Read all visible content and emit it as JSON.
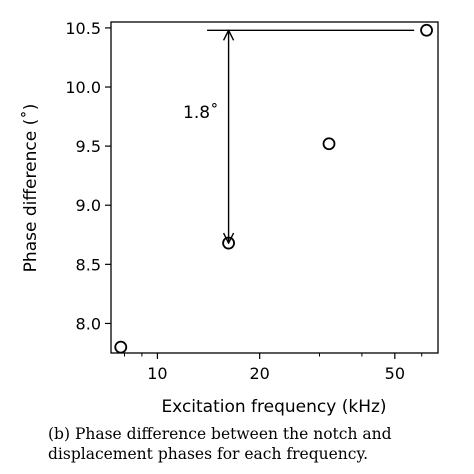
{
  "chart_data": {
    "type": "scatter",
    "title": "",
    "xlabel": "Excitation frequency (kHz)",
    "ylabel": "Phase difference (˚)",
    "x_scale": "log",
    "xlim": [
      7.3,
      67
    ],
    "ylim": [
      7.75,
      10.55
    ],
    "x_ticks": [
      10,
      20,
      50
    ],
    "x_tick_labels": [
      "10",
      "20",
      "50"
    ],
    "x_minor_ticks": [
      8,
      9,
      30,
      40,
      60
    ],
    "y_ticks": [
      8.0,
      8.5,
      9.0,
      9.5,
      10.0,
      10.5
    ],
    "y_tick_labels": [
      "8.0",
      "8.5",
      "9.0",
      "9.5",
      "10.0",
      "10.5"
    ],
    "grid": false,
    "series": [
      {
        "x": [
          7.8,
          16.2,
          32.0,
          62.0
        ],
        "y": [
          7.8,
          8.68,
          9.52,
          10.48
        ]
      }
    ],
    "annotation": {
      "label": "1.8˚",
      "arrow_x": 16.2,
      "arrow_from": 10.48,
      "arrow_to": 8.68,
      "hline_from_x": 14.0,
      "hline_to_x": 57.0,
      "hline_y": 10.48
    }
  },
  "caption": {
    "line1": "(b) Phase difference between the notch and",
    "line2": "displacement phases for each frequency."
  }
}
